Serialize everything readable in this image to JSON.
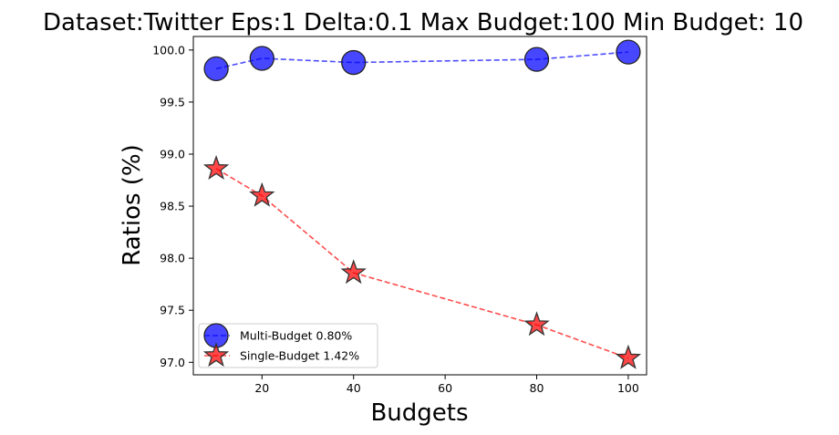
{
  "chart_data": {
    "type": "line",
    "title": "Dataset:Twitter Eps:1 Delta:0.1 Max Budget:100 Min Budget: 10",
    "xlabel": "Budgets",
    "ylabel": "Ratios (%)",
    "xlim": [
      5,
      104
    ],
    "ylim": [
      96.88,
      100.13
    ],
    "xticks": [
      20,
      40,
      60,
      80,
      100
    ],
    "yticks": [
      97.0,
      97.5,
      98.0,
      98.5,
      99.0,
      99.5,
      100.0
    ],
    "xtick_labels": [
      "20",
      "40",
      "60",
      "80",
      "100"
    ],
    "ytick_labels": [
      "97.0",
      "97.5",
      "98.0",
      "98.5",
      "99.0",
      "99.5",
      "100.0"
    ],
    "x": [
      10,
      20,
      40,
      80,
      100
    ],
    "series": [
      {
        "name": "Multi-Budget 0.80%",
        "values": [
          99.82,
          99.92,
          99.88,
          99.91,
          99.98
        ],
        "color": "#0000ff",
        "marker": "circle"
      },
      {
        "name": "Single-Budget 1.42%",
        "values": [
          98.86,
          98.6,
          97.86,
          97.36,
          97.04
        ],
        "color": "#ff0000",
        "marker": "star"
      }
    ],
    "legend_position": "lower-left",
    "grid": false
  }
}
